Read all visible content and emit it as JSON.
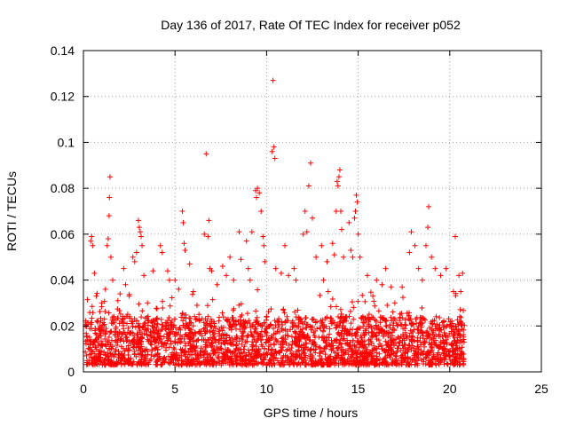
{
  "chart_data": {
    "type": "scatter",
    "title": "Day 136 of 2017, Rate Of TEC Index for receiver p052",
    "xlabel": "GPS time / hours",
    "ylabel": "ROTI / TECUs",
    "xlim": [
      0,
      25
    ],
    "ylim": [
      0,
      0.14
    ],
    "xticks": [
      "0",
      "5",
      "10",
      "15",
      "20",
      "25"
    ],
    "yticks": [
      "0",
      "0.02",
      "0.04",
      "0.06",
      "0.08",
      "0.1",
      "0.12",
      "0.14"
    ],
    "grid": true,
    "marker": "plus",
    "color": "#ff0000",
    "series": [
      {
        "points": [
          [
            0.4,
            0.057
          ],
          [
            0.45,
            0.059
          ],
          [
            0.5,
            0.055
          ],
          [
            0.6,
            0.043
          ],
          [
            0.7,
            0.033
          ],
          [
            1.0,
            0.03
          ],
          [
            1.2,
            0.036
          ],
          [
            1.3,
            0.055
          ],
          [
            1.35,
            0.058
          ],
          [
            1.4,
            0.068
          ],
          [
            1.42,
            0.076
          ],
          [
            1.45,
            0.085
          ],
          [
            1.5,
            0.05
          ],
          [
            1.6,
            0.04
          ],
          [
            2.0,
            0.034
          ],
          [
            2.2,
            0.045
          ],
          [
            2.3,
            0.038
          ],
          [
            2.5,
            0.033
          ],
          [
            2.7,
            0.05
          ],
          [
            2.8,
            0.048
          ],
          [
            2.9,
            0.052
          ],
          [
            3.0,
            0.066
          ],
          [
            3.05,
            0.063
          ],
          [
            3.1,
            0.061
          ],
          [
            3.15,
            0.059
          ],
          [
            3.2,
            0.055
          ],
          [
            3.3,
            0.042
          ],
          [
            3.5,
            0.03
          ],
          [
            3.8,
            0.044
          ],
          [
            4.2,
            0.055
          ],
          [
            4.3,
            0.052
          ],
          [
            4.6,
            0.044
          ],
          [
            4.7,
            0.04
          ],
          [
            5.0,
            0.04
          ],
          [
            5.2,
            0.036
          ],
          [
            5.4,
            0.07
          ],
          [
            5.45,
            0.065
          ],
          [
            5.5,
            0.056
          ],
          [
            5.55,
            0.053
          ],
          [
            5.8,
            0.047
          ],
          [
            6.0,
            0.035
          ],
          [
            6.2,
            0.029
          ],
          [
            6.6,
            0.06
          ],
          [
            6.7,
            0.095
          ],
          [
            6.8,
            0.059
          ],
          [
            6.85,
            0.066
          ],
          [
            6.9,
            0.045
          ],
          [
            7.0,
            0.044
          ],
          [
            7.3,
            0.038
          ],
          [
            7.6,
            0.046
          ],
          [
            7.8,
            0.042
          ],
          [
            8.0,
            0.05
          ],
          [
            8.2,
            0.04
          ],
          [
            8.5,
            0.061
          ],
          [
            8.6,
            0.049
          ],
          [
            8.9,
            0.057
          ],
          [
            9.0,
            0.045
          ],
          [
            9.1,
            0.04
          ],
          [
            9.2,
            0.061
          ],
          [
            9.4,
            0.079
          ],
          [
            9.45,
            0.076
          ],
          [
            9.5,
            0.08
          ],
          [
            9.6,
            0.078
          ],
          [
            9.7,
            0.07
          ],
          [
            9.8,
            0.059
          ],
          [
            9.85,
            0.055
          ],
          [
            9.9,
            0.048
          ],
          [
            10.3,
            0.096
          ],
          [
            10.35,
            0.127
          ],
          [
            10.4,
            0.098
          ],
          [
            10.45,
            0.093
          ],
          [
            10.5,
            0.045
          ],
          [
            10.8,
            0.043
          ],
          [
            11.0,
            0.055
          ],
          [
            11.2,
            0.042
          ],
          [
            11.5,
            0.045
          ],
          [
            11.6,
            0.04
          ],
          [
            12.0,
            0.06
          ],
          [
            12.1,
            0.07
          ],
          [
            12.2,
            0.061
          ],
          [
            12.3,
            0.081
          ],
          [
            12.4,
            0.091
          ],
          [
            12.5,
            0.067
          ],
          [
            12.7,
            0.05
          ],
          [
            13.0,
            0.055
          ],
          [
            13.1,
            0.04
          ],
          [
            13.3,
            0.048
          ],
          [
            13.6,
            0.056
          ],
          [
            13.7,
            0.051
          ],
          [
            13.8,
            0.07
          ],
          [
            13.85,
            0.083
          ],
          [
            13.9,
            0.081
          ],
          [
            13.95,
            0.085
          ],
          [
            14.0,
            0.088
          ],
          [
            14.05,
            0.07
          ],
          [
            14.1,
            0.062
          ],
          [
            14.2,
            0.05
          ],
          [
            14.5,
            0.065
          ],
          [
            14.6,
            0.053
          ],
          [
            14.7,
            0.05
          ],
          [
            14.8,
            0.067
          ],
          [
            14.85,
            0.07
          ],
          [
            14.9,
            0.077
          ],
          [
            14.95,
            0.074
          ],
          [
            15.0,
            0.06
          ],
          [
            15.1,
            0.05
          ],
          [
            15.5,
            0.042
          ],
          [
            15.8,
            0.033
          ],
          [
            16.0,
            0.04
          ],
          [
            16.3,
            0.038
          ],
          [
            16.5,
            0.045
          ],
          [
            16.8,
            0.037
          ],
          [
            17.0,
            0.03
          ],
          [
            17.4,
            0.037
          ],
          [
            17.8,
            0.052
          ],
          [
            17.9,
            0.061
          ],
          [
            18.1,
            0.055
          ],
          [
            18.3,
            0.045
          ],
          [
            18.5,
            0.04
          ],
          [
            18.7,
            0.055
          ],
          [
            18.8,
            0.063
          ],
          [
            18.85,
            0.072
          ],
          [
            19.0,
            0.05
          ],
          [
            19.2,
            0.045
          ],
          [
            19.5,
            0.042
          ],
          [
            19.8,
            0.045
          ],
          [
            20.2,
            0.035
          ],
          [
            20.3,
            0.059
          ],
          [
            20.5,
            0.042
          ],
          [
            20.6,
            0.035
          ],
          [
            20.7,
            0.043
          ]
        ]
      }
    ],
    "dense_band": {
      "x_range": [
        0.1,
        20.8
      ],
      "y_min": 0.003,
      "y_typical_max": 0.02,
      "note_points_visible": true
    }
  }
}
